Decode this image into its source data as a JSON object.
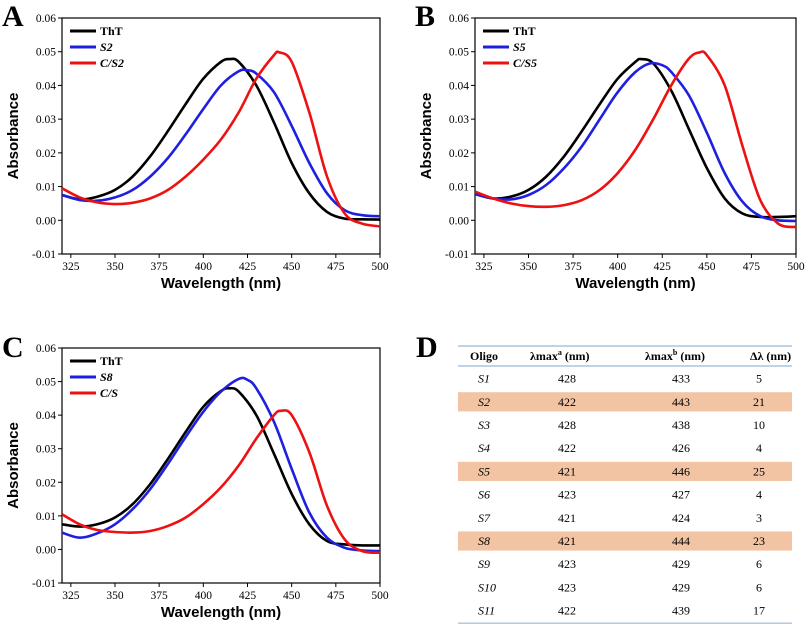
{
  "panels": [
    {
      "letter": "A"
    },
    {
      "letter": "B"
    },
    {
      "letter": "C"
    },
    {
      "letter": "D"
    }
  ],
  "colors": {
    "black": "#000000",
    "blue": "#1f1fe0",
    "red": "#ee1111",
    "highlight": "#f2c4a4",
    "rule": "#9ab8d8"
  },
  "chart_data": [
    {
      "panel": "A",
      "type": "line",
      "xlabel": "Wavelength (nm)",
      "ylabel": "Absorbance",
      "xlim": [
        320,
        500
      ],
      "ylim": [
        -0.01,
        0.06
      ],
      "xticks": [
        325,
        350,
        375,
        400,
        425,
        450,
        475,
        500
      ],
      "yticks": [
        -0.01,
        0.0,
        0.01,
        0.02,
        0.03,
        0.04,
        0.05,
        0.06
      ],
      "ytick_labels": [
        "-0.01",
        "0.00",
        "0.01",
        "0.02",
        "0.03",
        "0.04",
        "0.05",
        "0.06"
      ],
      "legend_position": "top-left",
      "series": [
        {
          "name": "ThT",
          "color": "#000000",
          "x": [
            320,
            330,
            340,
            350,
            360,
            370,
            380,
            390,
            400,
            410,
            415,
            420,
            430,
            440,
            450,
            460,
            470,
            480,
            490,
            500
          ],
          "y": [
            0.0075,
            0.0062,
            0.007,
            0.009,
            0.013,
            0.019,
            0.0265,
            0.0345,
            0.042,
            0.047,
            0.0478,
            0.047,
            0.04,
            0.029,
            0.017,
            0.008,
            0.0025,
            0.0005,
            0.0003,
            0.0002
          ]
        },
        {
          "name": "S2",
          "color": "#1f1fe0",
          "x": [
            320,
            330,
            340,
            350,
            360,
            370,
            380,
            390,
            400,
            410,
            420,
            425,
            430,
            440,
            450,
            460,
            470,
            480,
            490,
            500
          ],
          "y": [
            0.0075,
            0.006,
            0.0058,
            0.0068,
            0.009,
            0.013,
            0.0185,
            0.0255,
            0.033,
            0.04,
            0.0442,
            0.0445,
            0.0435,
            0.038,
            0.028,
            0.017,
            0.008,
            0.003,
            0.0015,
            0.0012
          ]
        },
        {
          "name": "C/S2",
          "color": "#ee1111",
          "x": [
            320,
            330,
            340,
            350,
            360,
            370,
            380,
            390,
            400,
            410,
            420,
            430,
            440,
            443,
            450,
            460,
            470,
            480,
            490,
            500
          ],
          "y": [
            0.0095,
            0.0068,
            0.0053,
            0.0048,
            0.0052,
            0.0065,
            0.009,
            0.013,
            0.018,
            0.024,
            0.032,
            0.042,
            0.049,
            0.0498,
            0.047,
            0.032,
            0.013,
            0.002,
            -0.001,
            -0.0018
          ]
        }
      ]
    },
    {
      "panel": "B",
      "type": "line",
      "xlabel": "Wavelength (nm)",
      "ylabel": "Absorbance",
      "xlim": [
        320,
        500
      ],
      "ylim": [
        -0.01,
        0.06
      ],
      "xticks": [
        325,
        350,
        375,
        400,
        425,
        450,
        475,
        500
      ],
      "yticks": [
        -0.01,
        0.0,
        0.01,
        0.02,
        0.03,
        0.04,
        0.05,
        0.06
      ],
      "ytick_labels": [
        "-0.01",
        "0.00",
        "0.01",
        "0.02",
        "0.03",
        "0.04",
        "0.05",
        "0.06"
      ],
      "legend_position": "top-left",
      "series": [
        {
          "name": "ThT",
          "color": "#000000",
          "x": [
            320,
            330,
            340,
            350,
            360,
            370,
            380,
            390,
            400,
            410,
            413,
            420,
            430,
            440,
            450,
            460,
            470,
            480,
            490,
            500
          ],
          "y": [
            0.0078,
            0.0065,
            0.007,
            0.009,
            0.013,
            0.019,
            0.0265,
            0.0345,
            0.042,
            0.047,
            0.0478,
            0.0465,
            0.0385,
            0.027,
            0.0155,
            0.0065,
            0.002,
            0.001,
            0.001,
            0.0012
          ]
        },
        {
          "name": "S5",
          "color": "#1f1fe0",
          "x": [
            320,
            330,
            340,
            350,
            360,
            370,
            380,
            390,
            400,
            410,
            418,
            425,
            430,
            440,
            450,
            460,
            470,
            480,
            490,
            500
          ],
          "y": [
            0.0078,
            0.0065,
            0.0062,
            0.0075,
            0.0105,
            0.0155,
            0.022,
            0.03,
            0.038,
            0.044,
            0.0465,
            0.046,
            0.044,
            0.037,
            0.026,
            0.014,
            0.0055,
            0.0012,
            0.0,
            -0.0002
          ]
        },
        {
          "name": "C/S5",
          "color": "#ee1111",
          "x": [
            320,
            330,
            340,
            350,
            360,
            370,
            380,
            390,
            400,
            410,
            420,
            430,
            440,
            446,
            450,
            460,
            470,
            480,
            490,
            500
          ],
          "y": [
            0.0085,
            0.0065,
            0.005,
            0.0042,
            0.004,
            0.0045,
            0.006,
            0.009,
            0.014,
            0.021,
            0.03,
            0.04,
            0.048,
            0.0498,
            0.049,
            0.04,
            0.022,
            0.006,
            -0.001,
            -0.002
          ]
        }
      ]
    },
    {
      "panel": "C",
      "type": "line",
      "xlabel": "Wavelength (nm)",
      "ylabel": "Absorbance",
      "xlim": [
        320,
        500
      ],
      "ylim": [
        -0.01,
        0.06
      ],
      "xticks": [
        325,
        350,
        375,
        400,
        425,
        450,
        475,
        500
      ],
      "yticks": [
        -0.01,
        0.0,
        0.01,
        0.02,
        0.03,
        0.04,
        0.05,
        0.06
      ],
      "ytick_labels": [
        "-0.01",
        "0.00",
        "0.01",
        "0.02",
        "0.03",
        "0.04",
        "0.05",
        "0.06"
      ],
      "legend_position": "top-left",
      "series": [
        {
          "name": "ThT",
          "color": "#000000",
          "x": [
            320,
            330,
            340,
            350,
            360,
            370,
            380,
            390,
            400,
            410,
            415,
            420,
            430,
            440,
            450,
            460,
            470,
            480,
            490,
            500
          ],
          "y": [
            0.0075,
            0.0068,
            0.0075,
            0.0095,
            0.0135,
            0.0195,
            0.027,
            0.035,
            0.0425,
            0.0472,
            0.048,
            0.047,
            0.04,
            0.0285,
            0.0165,
            0.0075,
            0.0025,
            0.0015,
            0.0012,
            0.0012
          ]
        },
        {
          "name": "S8",
          "color": "#1f1fe0",
          "x": [
            320,
            330,
            340,
            350,
            360,
            370,
            380,
            390,
            400,
            410,
            420,
            425,
            430,
            440,
            450,
            460,
            470,
            480,
            490,
            500
          ],
          "y": [
            0.005,
            0.0035,
            0.0048,
            0.0075,
            0.012,
            0.018,
            0.0255,
            0.0335,
            0.041,
            0.047,
            0.0508,
            0.0505,
            0.048,
            0.038,
            0.024,
            0.011,
            0.0035,
            0.0005,
            -0.0003,
            -0.0005
          ]
        },
        {
          "name": "C/S",
          "color": "#ee1111",
          "x": [
            320,
            330,
            340,
            350,
            360,
            370,
            380,
            390,
            400,
            410,
            420,
            430,
            440,
            444,
            450,
            460,
            470,
            480,
            490,
            500
          ],
          "y": [
            0.0105,
            0.0075,
            0.0058,
            0.0052,
            0.005,
            0.0055,
            0.007,
            0.0095,
            0.0135,
            0.0185,
            0.025,
            0.033,
            0.04,
            0.0413,
            0.04,
            0.029,
            0.013,
            0.003,
            -0.0005,
            -0.001
          ]
        }
      ]
    }
  ],
  "table": {
    "headers": [
      "Oligo",
      "λmax",
      "λmax",
      "Δλ (nm)"
    ],
    "header_sup": [
      "",
      "a",
      "b",
      ""
    ],
    "header_suffix": [
      "",
      " (nm)",
      " (nm)",
      ""
    ],
    "rows": [
      {
        "oligo": "S1",
        "a": "428",
        "b": "433",
        "d": "5",
        "highlight": false
      },
      {
        "oligo": "S2",
        "a": "422",
        "b": "443",
        "d": "21",
        "highlight": true
      },
      {
        "oligo": "S3",
        "a": "428",
        "b": "438",
        "d": "10",
        "highlight": false
      },
      {
        "oligo": "S4",
        "a": "422",
        "b": "426",
        "d": "4",
        "highlight": false
      },
      {
        "oligo": "S5",
        "a": "421",
        "b": "446",
        "d": "25",
        "highlight": true
      },
      {
        "oligo": "S6",
        "a": "423",
        "b": "427",
        "d": "4",
        "highlight": false
      },
      {
        "oligo": "S7",
        "a": "421",
        "b": "424",
        "d": "3",
        "highlight": false
      },
      {
        "oligo": "S8",
        "a": "421",
        "b": "444",
        "d": "23",
        "highlight": true
      },
      {
        "oligo": "S9",
        "a": "423",
        "b": "429",
        "d": "6",
        "highlight": false
      },
      {
        "oligo": "S10",
        "a": "423",
        "b": "429",
        "d": "6",
        "highlight": false
      },
      {
        "oligo": "S11",
        "a": "422",
        "b": "439",
        "d": "17",
        "highlight": false
      }
    ]
  }
}
